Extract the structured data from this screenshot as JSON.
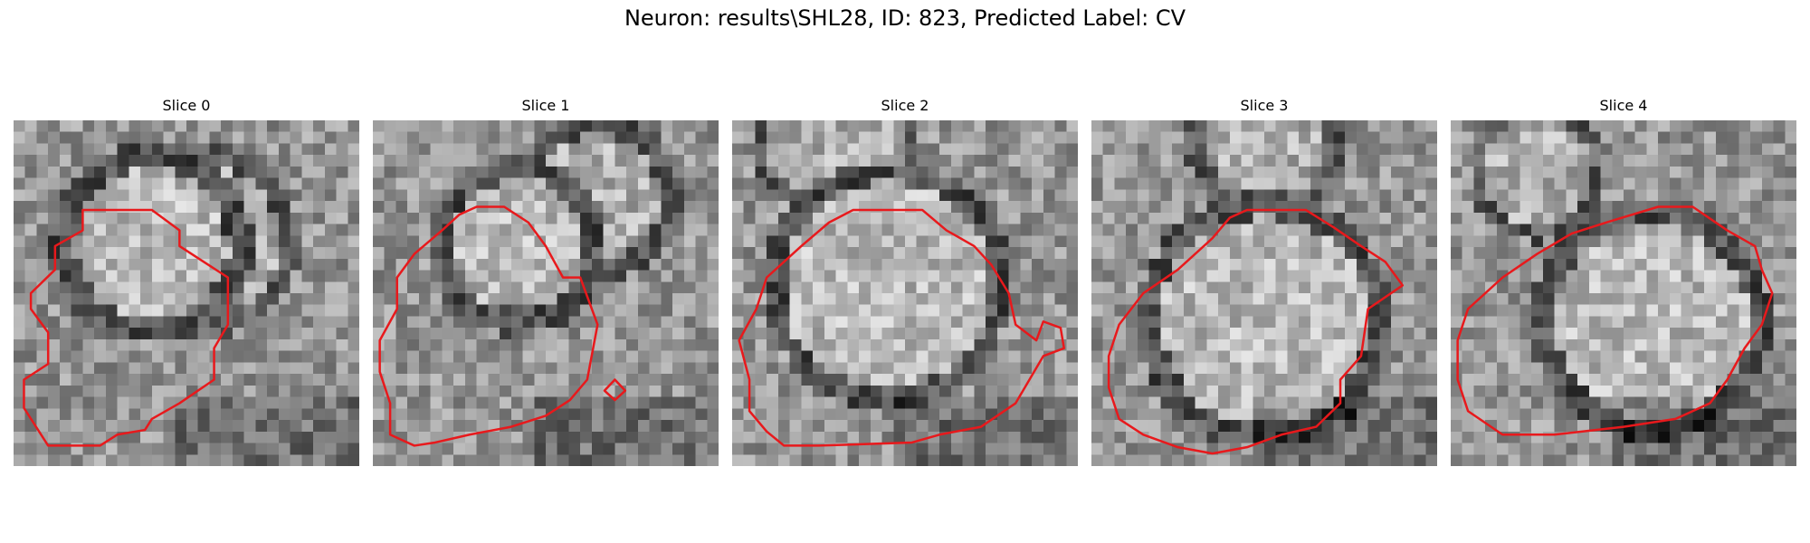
{
  "figure": {
    "title": "Neuron: results\\SHL28, ID: 823, Predicted Label: CV"
  },
  "panels": [
    {
      "title": "Slice 0",
      "contour_color": "#e8191c",
      "contour": [
        [
          20,
          57
        ],
        [
          40,
          57
        ],
        [
          48,
          70
        ],
        [
          48,
          80
        ],
        [
          55,
          90
        ],
        [
          62,
          100
        ],
        [
          62,
          130
        ],
        [
          58,
          145
        ],
        [
          58,
          165
        ],
        [
          48,
          180
        ],
        [
          40,
          190
        ],
        [
          38,
          197
        ],
        [
          30,
          200
        ],
        [
          25,
          207
        ],
        [
          10,
          207
        ],
        [
          3,
          183
        ],
        [
          3,
          165
        ],
        [
          10,
          155
        ],
        [
          10,
          135
        ],
        [
          5,
          120
        ],
        [
          5,
          110
        ],
        [
          12,
          95
        ],
        [
          12,
          80
        ],
        [
          20,
          70
        ],
        [
          20,
          60
        ]
      ],
      "contour_extra": []
    },
    {
      "title": "Slice 1",
      "contour_color": "#e8191c",
      "contour": [
        [
          30,
          55
        ],
        [
          38,
          55
        ],
        [
          45,
          65
        ],
        [
          50,
          80
        ],
        [
          55,
          100
        ],
        [
          60,
          100
        ],
        [
          65,
          130
        ],
        [
          62,
          165
        ],
        [
          57,
          178
        ],
        [
          50,
          188
        ],
        [
          40,
          195
        ],
        [
          28,
          200
        ],
        [
          18,
          205
        ],
        [
          12,
          207
        ],
        [
          5,
          200
        ],
        [
          5,
          180
        ],
        [
          2,
          160
        ],
        [
          2,
          140
        ],
        [
          7,
          120
        ],
        [
          7,
          100
        ],
        [
          12,
          85
        ],
        [
          20,
          70
        ],
        [
          25,
          60
        ]
      ],
      "contour_extra": [
        [
          [
            70,
            165
          ],
          [
            73,
            172
          ],
          [
            70,
            178
          ],
          [
            67,
            172
          ]
        ]
      ]
    },
    {
      "title": "Slice 2",
      "contour_color": "#e8191c",
      "contour": [
        [
          35,
          57
        ],
        [
          55,
          57
        ],
        [
          62,
          70
        ],
        [
          70,
          80
        ],
        [
          75,
          92
        ],
        [
          80,
          110
        ],
        [
          82,
          130
        ],
        [
          88,
          140
        ],
        [
          90,
          128
        ],
        [
          95,
          132
        ],
        [
          96,
          145
        ],
        [
          90,
          150
        ],
        [
          86,
          165
        ],
        [
          82,
          180
        ],
        [
          72,
          195
        ],
        [
          60,
          200
        ],
        [
          52,
          205
        ],
        [
          25,
          207
        ],
        [
          15,
          207
        ],
        [
          10,
          198
        ],
        [
          5,
          185
        ],
        [
          5,
          165
        ],
        [
          2,
          140
        ],
        [
          7,
          120
        ],
        [
          10,
          100
        ],
        [
          20,
          80
        ],
        [
          28,
          65
        ]
      ],
      "contour_extra": []
    },
    {
      "title": "Slice 3",
      "contour_color": "#e8191c",
      "contour": [
        [
          45,
          57
        ],
        [
          62,
          57
        ],
        [
          70,
          68
        ],
        [
          78,
          80
        ],
        [
          85,
          90
        ],
        [
          90,
          105
        ],
        [
          80,
          120
        ],
        [
          78,
          150
        ],
        [
          72,
          165
        ],
        [
          72,
          180
        ],
        [
          65,
          195
        ],
        [
          55,
          200
        ],
        [
          45,
          208
        ],
        [
          35,
          212
        ],
        [
          25,
          208
        ],
        [
          15,
          200
        ],
        [
          8,
          190
        ],
        [
          5,
          170
        ],
        [
          5,
          150
        ],
        [
          8,
          130
        ],
        [
          15,
          110
        ],
        [
          25,
          95
        ],
        [
          35,
          75
        ],
        [
          40,
          62
        ]
      ],
      "contour_extra": []
    },
    {
      "title": "Slice 4",
      "contour_color": "#e8191c",
      "contour": [
        [
          60,
          55
        ],
        [
          70,
          55
        ],
        [
          80,
          70
        ],
        [
          88,
          80
        ],
        [
          90,
          95
        ],
        [
          93,
          110
        ],
        [
          90,
          130
        ],
        [
          85,
          145
        ],
        [
          80,
          165
        ],
        [
          75,
          180
        ],
        [
          65,
          190
        ],
        [
          50,
          195
        ],
        [
          30,
          200
        ],
        [
          15,
          200
        ],
        [
          5,
          185
        ],
        [
          2,
          165
        ],
        [
          2,
          140
        ],
        [
          5,
          120
        ],
        [
          15,
          100
        ],
        [
          25,
          85
        ],
        [
          35,
          72
        ],
        [
          45,
          65
        ]
      ],
      "contour_extra": []
    }
  ]
}
